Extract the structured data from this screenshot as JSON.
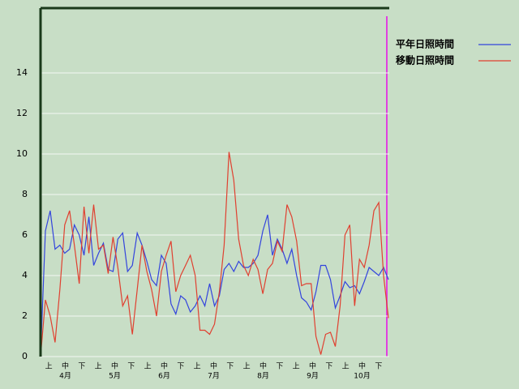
{
  "chart_data": {
    "type": "line",
    "dekads": [
      "上",
      "中",
      "下",
      "上",
      "中",
      "下",
      "上",
      "中",
      "下",
      "上",
      "中",
      "下",
      "上",
      "中",
      "下",
      "上",
      "中",
      "下",
      "上",
      "中",
      "下"
    ],
    "months": [
      "4月",
      "5月",
      "6月",
      "7月",
      "8月",
      "9月",
      "10月"
    ],
    "ylim": [
      0,
      17.2
    ],
    "yticks": [
      0,
      2,
      4,
      6,
      8,
      10,
      12,
      14
    ],
    "grid": true,
    "series": [
      {
        "name": "平年日照時間",
        "color": "#3344dd",
        "values": [
          0,
          6.2,
          7.2,
          5.3,
          5.5,
          5.1,
          5.3,
          6.5,
          6.0,
          5.0,
          6.9,
          4.5,
          5.1,
          5.6,
          4.3,
          4.2,
          5.8,
          6.1,
          4.2,
          4.5,
          6.1,
          5.5,
          4.7,
          3.8,
          3.5,
          5.0,
          4.6,
          2.6,
          2.1,
          3.0,
          2.8,
          2.2,
          2.5,
          3.0,
          2.5,
          3.6,
          2.5,
          3.0,
          4.3,
          4.6,
          4.2,
          4.7,
          4.4,
          4.4,
          4.6,
          5.0,
          6.2,
          7.0,
          5.0,
          5.8,
          5.3,
          4.6,
          5.3,
          4.0,
          2.9,
          2.7,
          2.3,
          3.2,
          4.5,
          4.5,
          3.8,
          2.4,
          3.0,
          3.7,
          3.4,
          3.5,
          3.1,
          3.7,
          4.4,
          4.2,
          4.0,
          4.4,
          3.8
        ]
      },
      {
        "name": "移動日照時間",
        "color": "#e04030",
        "values": [
          0,
          2.8,
          2.0,
          0.7,
          3.3,
          6.5,
          7.2,
          5.5,
          3.6,
          7.4,
          5.1,
          7.5,
          5.3,
          5.5,
          4.1,
          5.9,
          4.4,
          2.5,
          3.0,
          1.1,
          3.3,
          5.5,
          4.2,
          3.3,
          2.0,
          4.2,
          5.0,
          5.7,
          3.2,
          4.0,
          4.5,
          5.0,
          4.0,
          1.3,
          1.3,
          1.1,
          1.6,
          3.2,
          5.5,
          10.1,
          8.7,
          5.8,
          4.5,
          4.0,
          4.8,
          4.3,
          3.1,
          4.3,
          4.6,
          5.7,
          5.2,
          7.5,
          6.9,
          5.7,
          3.5,
          3.6,
          3.6,
          1.0,
          0.1,
          1.1,
          1.2,
          0.5,
          2.5,
          6.0,
          6.5,
          2.5,
          4.8,
          4.4,
          5.5,
          7.2,
          7.6,
          4.0,
          1.9
        ]
      }
    ]
  }
}
